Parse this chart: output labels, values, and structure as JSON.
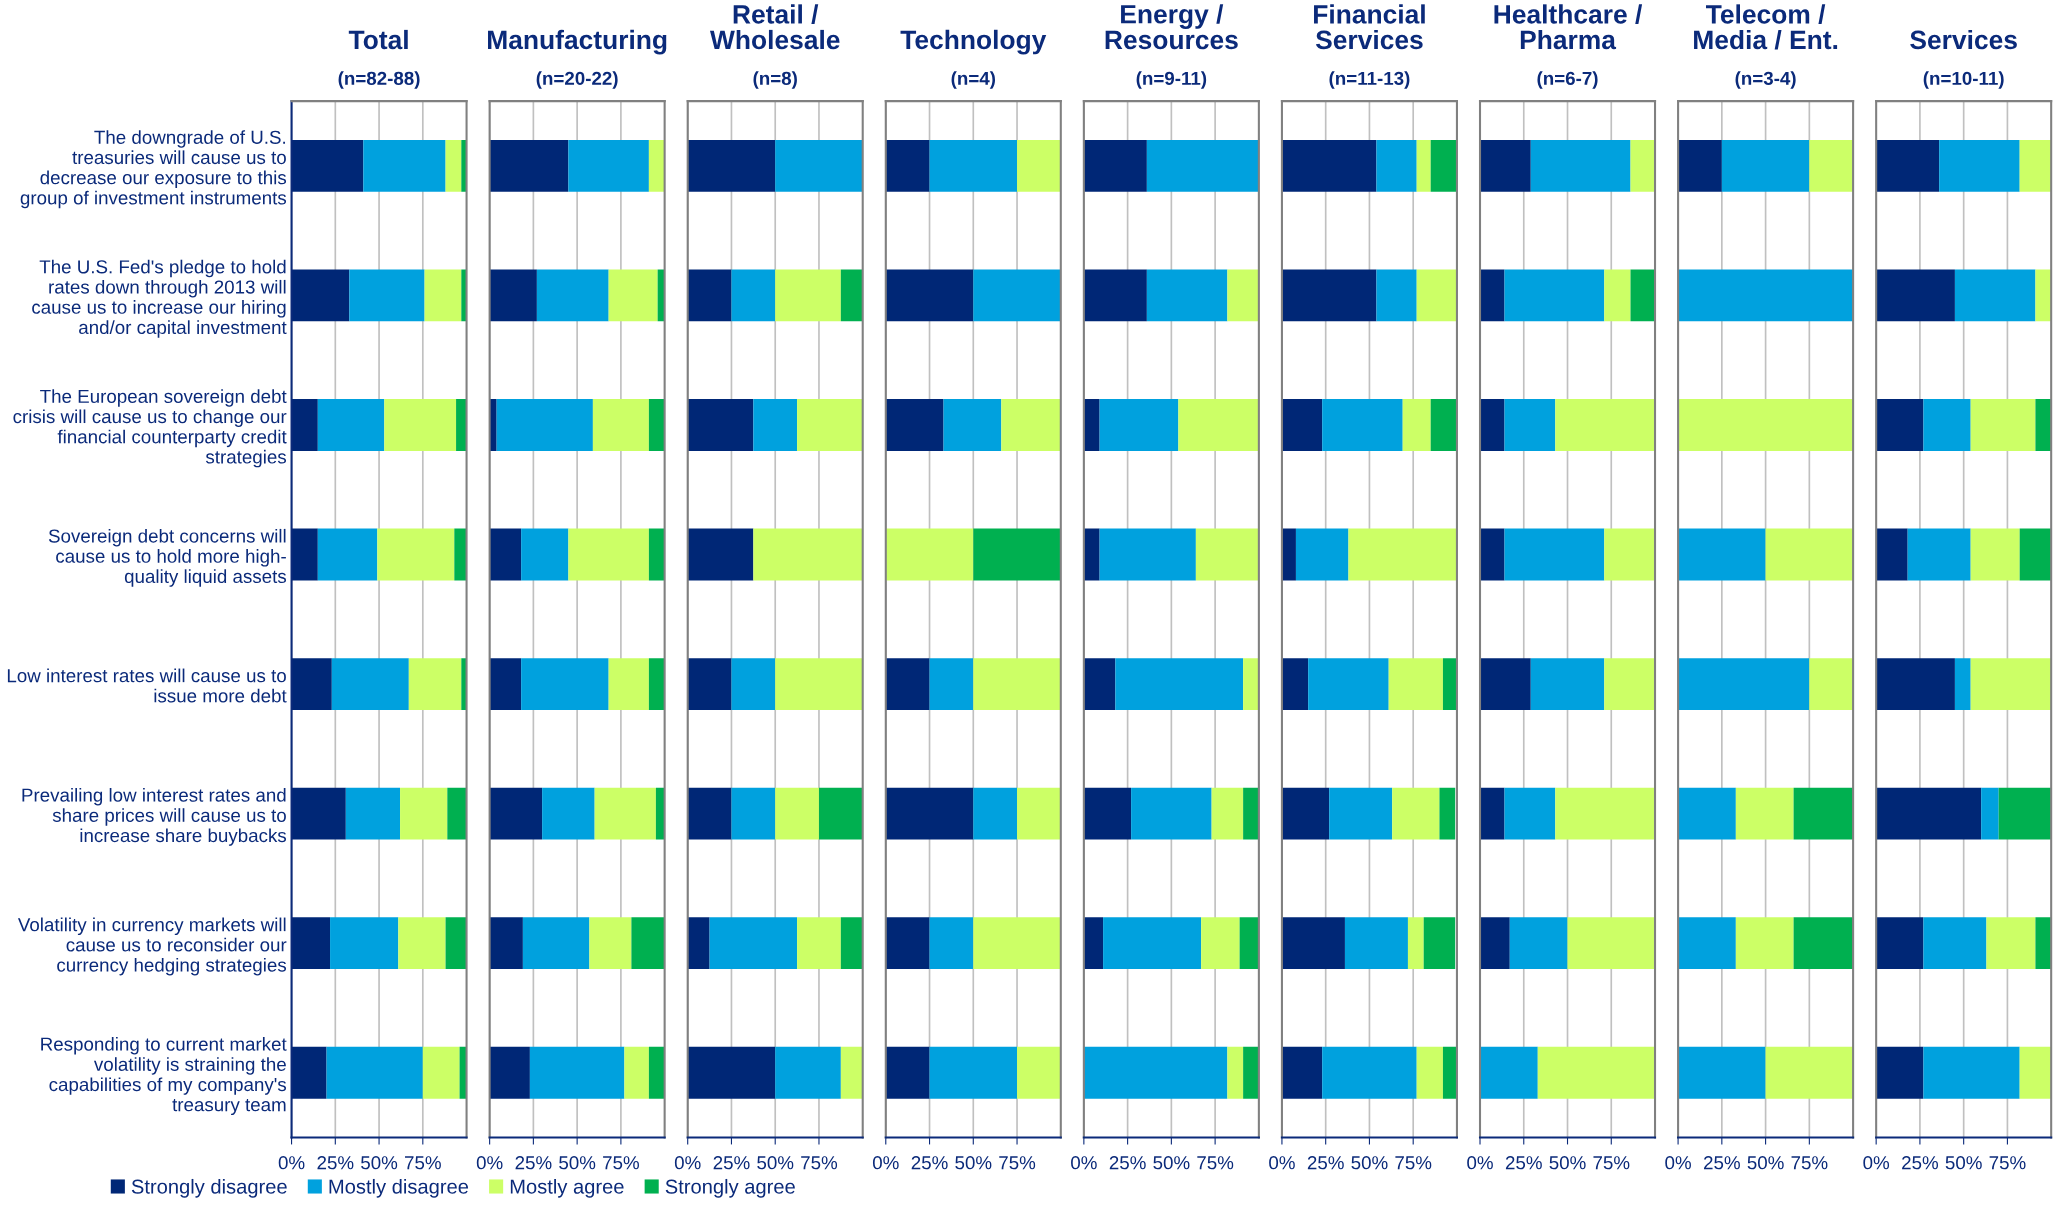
{
  "chart_data": [
    {
      "type": "bar",
      "orientation": "horizontal",
      "stacked": true,
      "title": "Total",
      "subtitle": "(n=82-88)",
      "categories": [
        "The downgrade of U.S.\ntreasuries will cause us to\ndecrease our exposure to this\ngroup of investment instruments",
        "The U.S. Fed's pledge to hold\nrates down through 2013 will\ncause us to increase our hiring\nand/or capital investment",
        "The European sovereign debt\ncrisis will cause us to change our\nfinancial counterparty credit\nstrategies",
        "Sovereign debt concerns will\ncause us to hold more high-\nquality liquid assets",
        "Low interest rates will cause us to\nissue more debt",
        "Prevailing low interest rates and\nshare prices will cause us to\nincrease share buybacks",
        "Volatility in currency markets will\ncause us to reconsider our\ncurrency hedging strategies",
        "Responding to current market\nvolatility is straining the\ncapabilities of my company's\ntreasury team"
      ],
      "xlim": [
        0,
        100
      ],
      "xticks": [
        {
          "value": 0,
          "label": "0%"
        },
        {
          "value": 25,
          "label": "25%"
        },
        {
          "value": 50,
          "label": "50%"
        },
        {
          "value": 75,
          "label": "75%"
        }
      ],
      "grid": "x",
      "legend": "bottom",
      "series": [
        {
          "name": "Strongly disagree",
          "color": "#002776",
          "values": [
            41,
            33,
            15,
            15,
            23,
            31,
            22,
            20
          ]
        },
        {
          "name": "Mostly disagree",
          "color": "#00a1de",
          "values": [
            47,
            43,
            38,
            34,
            44,
            31,
            39,
            55
          ]
        },
        {
          "name": "Mostly agree",
          "color": "#ccff66",
          "values": [
            9,
            21,
            41,
            44,
            30,
            27,
            27,
            21
          ]
        },
        {
          "name": "Strongly agree",
          "color": "#00b050",
          "values": [
            3,
            3,
            6,
            7,
            3,
            11,
            12,
            4
          ]
        }
      ]
    },
    {
      "type": "bar",
      "orientation": "horizontal",
      "stacked": true,
      "title": "Manufacturing",
      "subtitle": "(n=20-22)",
      "categories": [
        null,
        null,
        null,
        null,
        null,
        null,
        null,
        null
      ],
      "xlim": [
        0,
        100
      ],
      "xticks": [
        {
          "value": 0,
          "label": "0%"
        },
        {
          "value": 25,
          "label": "25%"
        },
        {
          "value": 50,
          "label": "50%"
        },
        {
          "value": 75,
          "label": "75%"
        }
      ],
      "grid": "x",
      "tick_labels": "x",
      "series": [
        {
          "color": "#002776",
          "values": [
            45,
            27,
            4,
            18,
            18,
            30,
            19,
            23
          ]
        },
        {
          "color": "#00a1de",
          "values": [
            46,
            41,
            55,
            27,
            50,
            30,
            38,
            54
          ]
        },
        {
          "color": "#ccff66",
          "values": [
            9,
            28,
            32,
            46,
            23,
            35,
            24,
            14
          ]
        },
        {
          "color": "#00b050",
          "values": [
            0,
            4,
            9,
            9,
            9,
            5,
            19,
            9
          ]
        }
      ]
    },
    {
      "type": "bar",
      "orientation": "horizontal",
      "stacked": true,
      "title": "Retail /\nWholesale",
      "subtitle": "(n=8)",
      "categories": [
        null,
        null,
        null,
        null,
        null,
        null,
        null,
        null
      ],
      "xlim": [
        0,
        100
      ],
      "xticks": [
        {
          "value": 0,
          "label": "0%"
        },
        {
          "value": 25,
          "label": "25%"
        },
        {
          "value": 50,
          "label": "50%"
        },
        {
          "value": 75,
          "label": "75%"
        }
      ],
      "grid": "x",
      "tick_labels": "x",
      "series": [
        {
          "color": "#002776",
          "values": [
            50,
            25,
            37.5,
            37.5,
            25,
            25,
            12.5,
            50
          ]
        },
        {
          "color": "#00a1de",
          "values": [
            50,
            25,
            25,
            0,
            25,
            25,
            50,
            37.5
          ]
        },
        {
          "color": "#ccff66",
          "values": [
            0,
            37.5,
            37.5,
            62.5,
            50,
            25,
            25,
            12.5
          ]
        },
        {
          "color": "#00b050",
          "values": [
            0,
            12.5,
            0,
            0,
            0,
            25,
            12.5,
            0
          ]
        }
      ]
    },
    {
      "type": "bar",
      "orientation": "horizontal",
      "stacked": true,
      "title": "Technology",
      "subtitle": "(n=4)",
      "categories": [
        null,
        null,
        null,
        null,
        null,
        null,
        null,
        null
      ],
      "xlim": [
        0,
        100
      ],
      "xticks": [
        {
          "value": 0,
          "label": "0%"
        },
        {
          "value": 25,
          "label": "25%"
        },
        {
          "value": 50,
          "label": "50%"
        },
        {
          "value": 75,
          "label": "75%"
        }
      ],
      "grid": "x",
      "tick_labels": "x",
      "series": [
        {
          "color": "#002776",
          "values": [
            25,
            50,
            33,
            0,
            25,
            50,
            25,
            25
          ]
        },
        {
          "color": "#00a1de",
          "values": [
            50,
            50,
            33,
            0,
            25,
            25,
            25,
            50
          ]
        },
        {
          "color": "#ccff66",
          "values": [
            25,
            0,
            34,
            50,
            50,
            25,
            50,
            25
          ]
        },
        {
          "color": "#00b050",
          "values": [
            0,
            0,
            0,
            50,
            0,
            0,
            0,
            0
          ]
        }
      ]
    },
    {
      "type": "bar",
      "orientation": "horizontal",
      "stacked": true,
      "title": "Energy /\nResources",
      "subtitle": "(n=9-11)",
      "categories": [
        null,
        null,
        null,
        null,
        null,
        null,
        null,
        null
      ],
      "xlim": [
        0,
        100
      ],
      "xticks": [
        {
          "value": 0,
          "label": "0%"
        },
        {
          "value": 25,
          "label": "25%"
        },
        {
          "value": 50,
          "label": "50%"
        },
        {
          "value": 75,
          "label": "75%"
        }
      ],
      "grid": "x",
      "tick_labels": "x",
      "series": [
        {
          "color": "#002776",
          "values": [
            36,
            36,
            9,
            9,
            18,
            27,
            11,
            0
          ]
        },
        {
          "color": "#00a1de",
          "values": [
            64,
            46,
            45,
            55,
            73,
            46,
            56,
            82
          ]
        },
        {
          "color": "#ccff66",
          "values": [
            0,
            18,
            46,
            36,
            9,
            18,
            22,
            9
          ]
        },
        {
          "color": "#00b050",
          "values": [
            0,
            0,
            0,
            0,
            0,
            9,
            11,
            9
          ]
        }
      ]
    },
    {
      "type": "bar",
      "orientation": "horizontal",
      "stacked": true,
      "title": "Financial\nServices",
      "subtitle": "(n=11-13)",
      "categories": [
        null,
        null,
        null,
        null,
        null,
        null,
        null,
        null
      ],
      "xlim": [
        0,
        100
      ],
      "xticks": [
        {
          "value": 0,
          "label": "0%"
        },
        {
          "value": 25,
          "label": "25%"
        },
        {
          "value": 50,
          "label": "50%"
        },
        {
          "value": 75,
          "label": "75%"
        }
      ],
      "grid": "x",
      "tick_labels": "x",
      "series": [
        {
          "color": "#002776",
          "values": [
            54,
            54,
            23,
            8,
            15,
            27,
            36,
            23
          ]
        },
        {
          "color": "#00a1de",
          "values": [
            23,
            23,
            46,
            30,
            46,
            36,
            36,
            54
          ]
        },
        {
          "color": "#ccff66",
          "values": [
            8,
            23,
            16,
            62,
            31,
            27,
            9,
            15
          ]
        },
        {
          "color": "#00b050",
          "values": [
            15,
            0,
            15,
            0,
            8,
            9,
            18,
            8
          ]
        }
      ]
    },
    {
      "type": "bar",
      "orientation": "horizontal",
      "stacked": true,
      "title": "Healthcare /\nPharma",
      "subtitle": "(n=6-7)",
      "categories": [
        null,
        null,
        null,
        null,
        null,
        null,
        null,
        null
      ],
      "xlim": [
        0,
        100
      ],
      "xticks": [
        {
          "value": 0,
          "label": "0%"
        },
        {
          "value": 25,
          "label": "25%"
        },
        {
          "value": 50,
          "label": "50%"
        },
        {
          "value": 75,
          "label": "75%"
        }
      ],
      "grid": "x",
      "tick_labels": "x",
      "series": [
        {
          "color": "#002776",
          "values": [
            29,
            14,
            14,
            14,
            29,
            14,
            17,
            0
          ]
        },
        {
          "color": "#00a1de",
          "values": [
            57,
            57,
            29,
            57,
            42,
            29,
            33,
            33
          ]
        },
        {
          "color": "#ccff66",
          "values": [
            14,
            15,
            57,
            29,
            29,
            57,
            50,
            67
          ]
        },
        {
          "color": "#00b050",
          "values": [
            0,
            14,
            0,
            0,
            0,
            0,
            0,
            0
          ]
        }
      ]
    },
    {
      "type": "bar",
      "orientation": "horizontal",
      "stacked": true,
      "title": "Telecom /\nMedia / Ent.",
      "subtitle": "(n=3-4)",
      "categories": [
        null,
        null,
        null,
        null,
        null,
        null,
        null,
        null
      ],
      "xlim": [
        0,
        100
      ],
      "xticks": [
        {
          "value": 0,
          "label": "0%"
        },
        {
          "value": 25,
          "label": "25%"
        },
        {
          "value": 50,
          "label": "50%"
        },
        {
          "value": 75,
          "label": "75%"
        }
      ],
      "grid": "x",
      "tick_labels": "x",
      "series": [
        {
          "color": "#002776",
          "values": [
            25,
            0,
            0,
            0,
            0,
            0,
            0,
            0
          ]
        },
        {
          "color": "#00a1de",
          "values": [
            50,
            100,
            0,
            50,
            75,
            33,
            33,
            50
          ]
        },
        {
          "color": "#ccff66",
          "values": [
            25,
            0,
            100,
            50,
            25,
            33,
            33,
            50
          ]
        },
        {
          "color": "#00b050",
          "values": [
            0,
            0,
            0,
            0,
            0,
            34,
            34,
            0
          ]
        }
      ]
    },
    {
      "type": "bar",
      "orientation": "horizontal",
      "stacked": true,
      "title": "Services",
      "subtitle": "(n=10-11)",
      "categories": [
        null,
        null,
        null,
        null,
        null,
        null,
        null,
        null
      ],
      "xlim": [
        0,
        100
      ],
      "xticks": [
        {
          "value": 0,
          "label": "0%"
        },
        {
          "value": 25,
          "label": "25%"
        },
        {
          "value": 50,
          "label": "50%"
        },
        {
          "value": 75,
          "label": "75%"
        }
      ],
      "grid": "x",
      "tick_labels": "x",
      "series": [
        {
          "color": "#002776",
          "values": [
            36,
            45,
            27,
            18,
            45,
            60,
            27,
            27
          ]
        },
        {
          "color": "#00a1de",
          "values": [
            46,
            46,
            27,
            36,
            9,
            10,
            36,
            55
          ]
        },
        {
          "color": "#ccff66",
          "values": [
            18,
            9,
            37,
            28,
            46,
            0,
            28,
            18
          ]
        },
        {
          "color": "#00b050",
          "values": [
            0,
            0,
            9,
            18,
            0,
            30,
            9,
            0
          ]
        }
      ]
    }
  ]
}
